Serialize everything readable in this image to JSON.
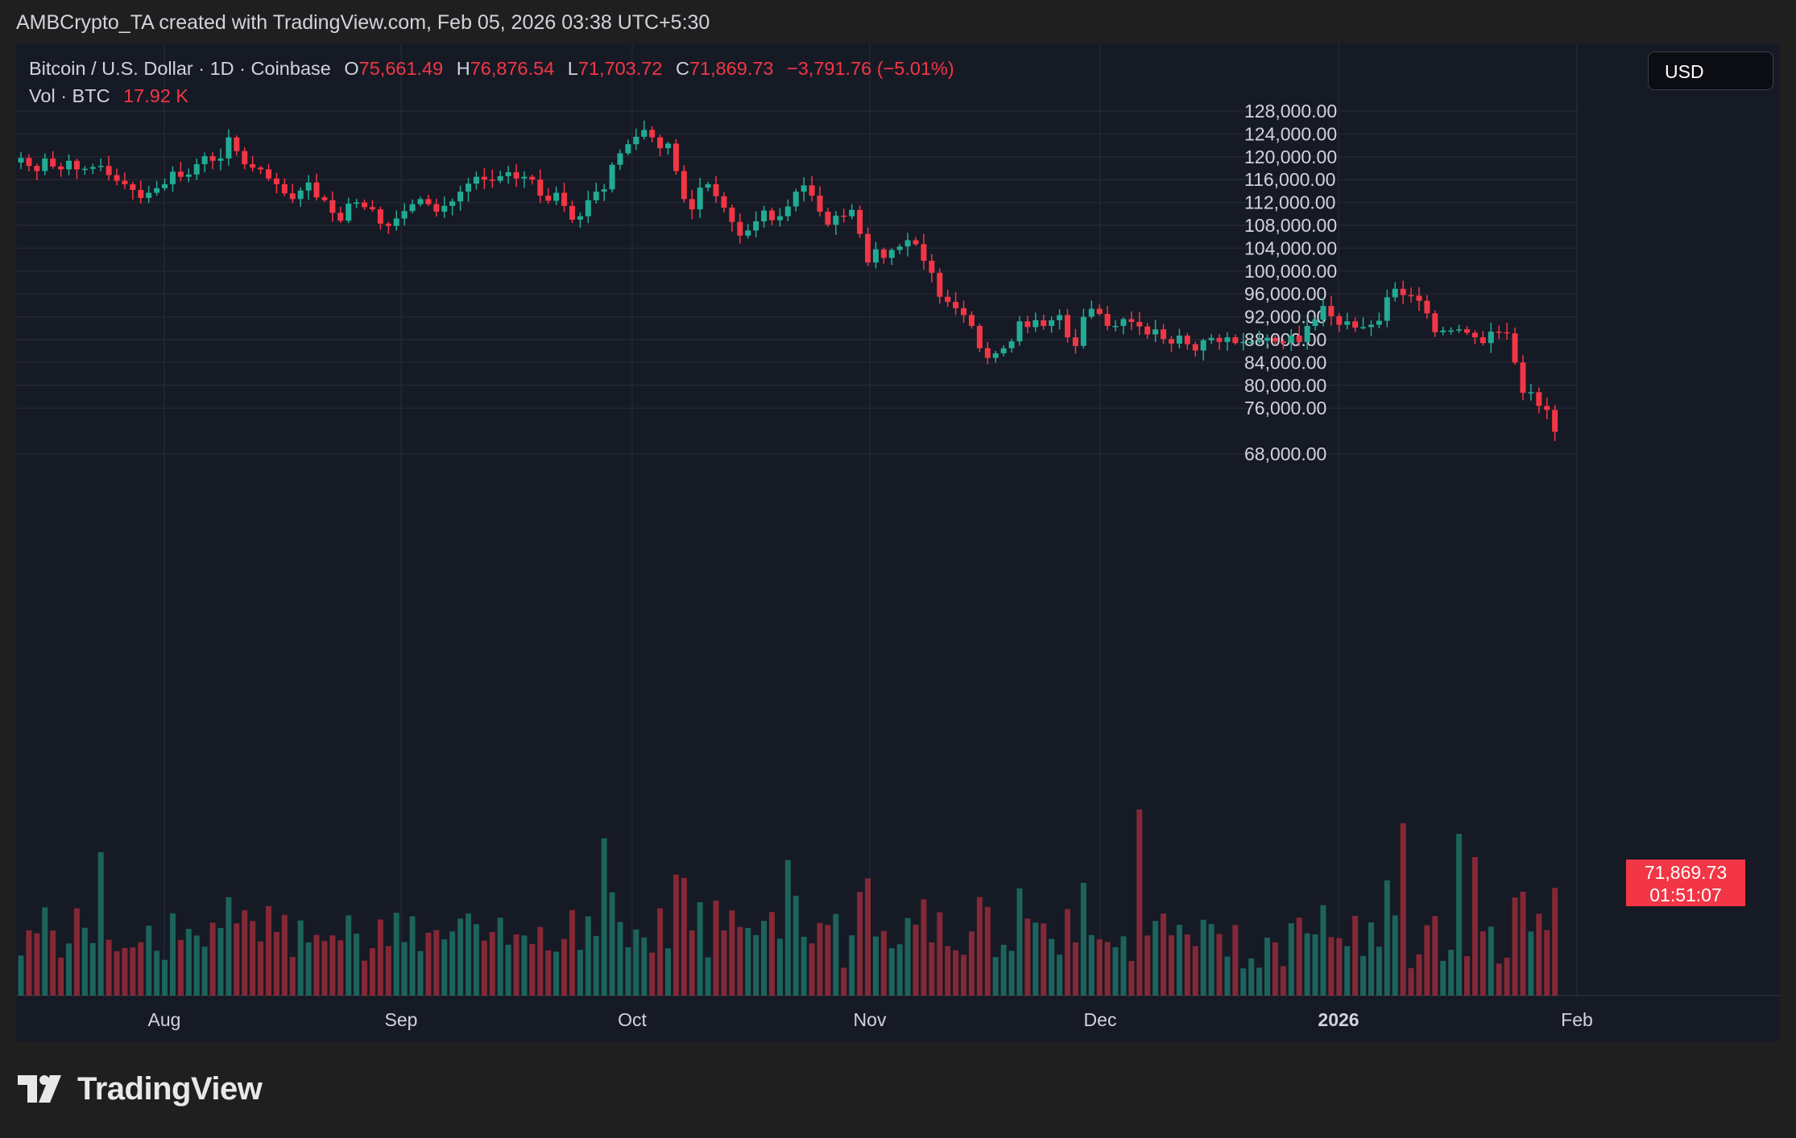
{
  "attribution": "AMBCrypto_TA created with TradingView.com, Feb 05, 2026 03:38 UTC+5:30",
  "legend": {
    "symbol": "Bitcoin / U.S. Dollar · 1D · Coinbase",
    "open_label": "O",
    "open": "75,661.49",
    "high_label": "H",
    "high": "76,876.54",
    "low_label": "L",
    "low": "71,703.72",
    "close_label": "C",
    "close": "71,869.73",
    "change": "−3,791.76 (−5.01%)",
    "vol_label": "Vol · BTC",
    "vol_value": "17.92 K"
  },
  "currency_button": "USD",
  "last_price": {
    "price": "71,869.73",
    "countdown": "01:51:07"
  },
  "brand": "TradingView",
  "colors": {
    "up": "#22ab94",
    "down": "#f23645",
    "background": "#161a25",
    "grid": "#232734",
    "text": "#d1d4dc"
  },
  "chart_data": {
    "type": "candlestick",
    "title": "Bitcoin / U.S. Dollar · 1D · Coinbase",
    "x_axis": {
      "ticks": [
        "Aug",
        "Sep",
        "Oct",
        "Nov",
        "Dec",
        "2026",
        "Feb"
      ],
      "range": [
        "2025-07-18",
        "2026-02-05"
      ]
    },
    "y_axis": {
      "ylim": [
        66000,
        130000
      ],
      "ticks": [
        "128,000.00",
        "124,000.00",
        "120,000.00",
        "116,000.00",
        "112,000.00",
        "108,000.00",
        "104,000.00",
        "100,000.00",
        "96,000.00",
        "92,000.00",
        "88,000.00",
        "84,000.00",
        "80,000.00",
        "76,000.00",
        "68,000.00"
      ]
    },
    "grid": true,
    "closes": [
      119800,
      118400,
      117500,
      119700,
      118300,
      117800,
      119300,
      117800,
      117900,
      118200,
      118400,
      116800,
      115800,
      115200,
      114200,
      112800,
      113700,
      114500,
      115200,
      117400,
      116500,
      116900,
      118700,
      120100,
      119300,
      119700,
      123400,
      121000,
      118700,
      118100,
      117800,
      116200,
      115200,
      113600,
      112600,
      114100,
      115500,
      112900,
      112400,
      110200,
      108800,
      111800,
      112000,
      111200,
      110800,
      108300,
      107900,
      109200,
      110500,
      111700,
      112600,
      111700,
      110400,
      111400,
      112200,
      113900,
      115300,
      116500,
      116000,
      115800,
      116600,
      117300,
      116200,
      116500,
      116000,
      113200,
      112300,
      113700,
      111400,
      109000,
      109600,
      112400,
      113900,
      114300,
      118600,
      120600,
      122200,
      123500,
      124700,
      123400,
      121500,
      122300,
      117500,
      112600,
      110800,
      114600,
      115200,
      113100,
      111100,
      108600,
      106200,
      107100,
      108700,
      110600,
      108900,
      109600,
      111300,
      113900,
      115000,
      113200,
      110400,
      108100,
      109700,
      109600,
      110700,
      106500,
      101500,
      103800,
      102300,
      103700,
      104300,
      105400,
      104700,
      101800,
      99700,
      95500,
      94600,
      93500,
      92300,
      90400,
      86500,
      84800,
      85600,
      86500,
      87700,
      91200,
      90200,
      91400,
      90400,
      91400,
      92300,
      88400,
      86900,
      92000,
      93400,
      92500,
      90400,
      90400,
      91600,
      91100,
      90300,
      88900,
      89800,
      88100,
      87300,
      88700,
      87200,
      86100,
      87900,
      88300,
      87600,
      88400,
      87400,
      87600,
      87600,
      87800,
      88300,
      87700,
      87400,
      88700,
      87600,
      90400,
      91500,
      93900,
      92100,
      90600,
      91200,
      90100,
      90200,
      90600,
      91300,
      95400,
      96900,
      95800,
      95700,
      94800,
      92600,
      89300,
      89600,
      89600,
      89800,
      89200,
      88400,
      87400,
      89400,
      89300,
      89100,
      84000,
      78700,
      78800,
      76400,
      75700,
      71870
    ],
    "series": [
      {
        "name": "Vol · BTC",
        "last_value": "17.92 K"
      }
    ]
  }
}
